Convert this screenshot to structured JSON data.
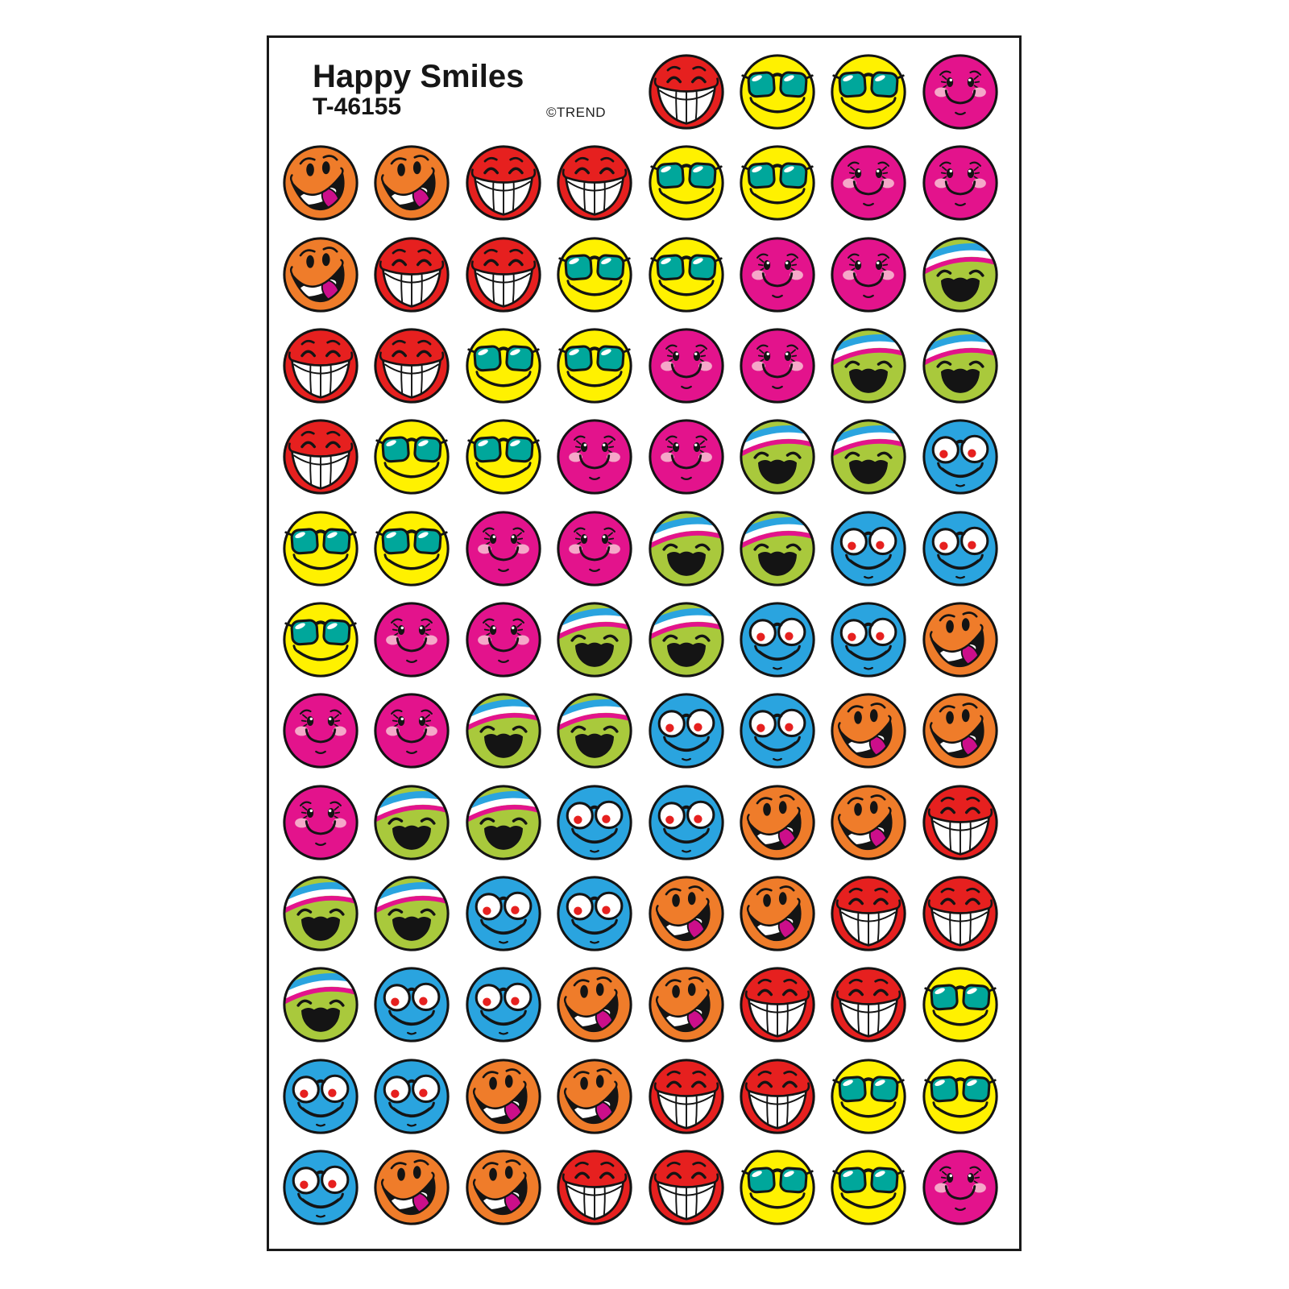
{
  "page": {
    "background_color": "#FFFFFF"
  },
  "sheet": {
    "title": "Happy Smiles",
    "product_code": "T-46155",
    "copyright": "©TREND",
    "border_color": "#1A1A1A",
    "total_stickers": 100
  },
  "colors": {
    "outline": "#141414",
    "orange": "#EF7C2A",
    "red": "#E6201F",
    "yellow": "#FFF100",
    "teal": "#00A79B",
    "pink": "#E3138C",
    "blush": "#F5A8C9",
    "green": "#A9C93C",
    "sky_blue": "#2AA4DF",
    "tongue": "#CC0E8A"
  },
  "faces": {
    "orange-tongue": {
      "description": "Orange smiley sticking out a magenta tongue",
      "color_key": "orange"
    },
    "red-grin": {
      "description": "Red smiley with closed eyes and a big white toothy grin",
      "color_key": "red"
    },
    "yellow-sunglasses": {
      "description": "Yellow smiley wearing teal sunglasses",
      "color_key": "yellow"
    },
    "pink-rosy": {
      "description": "Pink smiley with eyelashes and rosy cheeks",
      "color_key": "pink"
    },
    "green-headband": {
      "description": "Green laughing smiley wearing a blue-white-pink striped headband",
      "color_key": "green"
    },
    "blue-glasses": {
      "description": "Blue smiley wearing big round glasses with red pupils",
      "color_key": "sky_blue"
    }
  },
  "grid": {
    "columns": 8,
    "rows": [
      [
        "",
        "",
        "",
        "",
        "red-grin",
        "yellow-sunglasses",
        "yellow-sunglasses",
        "pink-rosy"
      ],
      [
        "orange-tongue",
        "orange-tongue",
        "red-grin",
        "red-grin",
        "yellow-sunglasses",
        "yellow-sunglasses",
        "pink-rosy",
        "pink-rosy"
      ],
      [
        "orange-tongue",
        "red-grin",
        "red-grin",
        "yellow-sunglasses",
        "yellow-sunglasses",
        "pink-rosy",
        "pink-rosy",
        "green-headband"
      ],
      [
        "red-grin",
        "red-grin",
        "yellow-sunglasses",
        "yellow-sunglasses",
        "pink-rosy",
        "pink-rosy",
        "green-headband",
        "green-headband"
      ],
      [
        "red-grin",
        "yellow-sunglasses",
        "yellow-sunglasses",
        "pink-rosy",
        "pink-rosy",
        "green-headband",
        "green-headband",
        "blue-glasses"
      ],
      [
        "yellow-sunglasses",
        "yellow-sunglasses",
        "pink-rosy",
        "pink-rosy",
        "green-headband",
        "green-headband",
        "blue-glasses",
        "blue-glasses"
      ],
      [
        "yellow-sunglasses",
        "pink-rosy",
        "pink-rosy",
        "green-headband",
        "green-headband",
        "blue-glasses",
        "blue-glasses",
        "orange-tongue"
      ],
      [
        "pink-rosy",
        "pink-rosy",
        "green-headband",
        "green-headband",
        "blue-glasses",
        "blue-glasses",
        "orange-tongue",
        "orange-tongue"
      ],
      [
        "pink-rosy",
        "green-headband",
        "green-headband",
        "blue-glasses",
        "blue-glasses",
        "orange-tongue",
        "orange-tongue",
        "red-grin"
      ],
      [
        "green-headband",
        "green-headband",
        "blue-glasses",
        "blue-glasses",
        "orange-tongue",
        "orange-tongue",
        "red-grin",
        "red-grin"
      ],
      [
        "green-headband",
        "blue-glasses",
        "blue-glasses",
        "orange-tongue",
        "orange-tongue",
        "red-grin",
        "red-grin",
        "yellow-sunglasses"
      ],
      [
        "blue-glasses",
        "blue-glasses",
        "orange-tongue",
        "orange-tongue",
        "red-grin",
        "red-grin",
        "yellow-sunglasses",
        "yellow-sunglasses"
      ],
      [
        "blue-glasses",
        "orange-tongue",
        "orange-tongue",
        "red-grin",
        "red-grin",
        "yellow-sunglasses",
        "yellow-sunglasses",
        "pink-rosy"
      ]
    ]
  }
}
